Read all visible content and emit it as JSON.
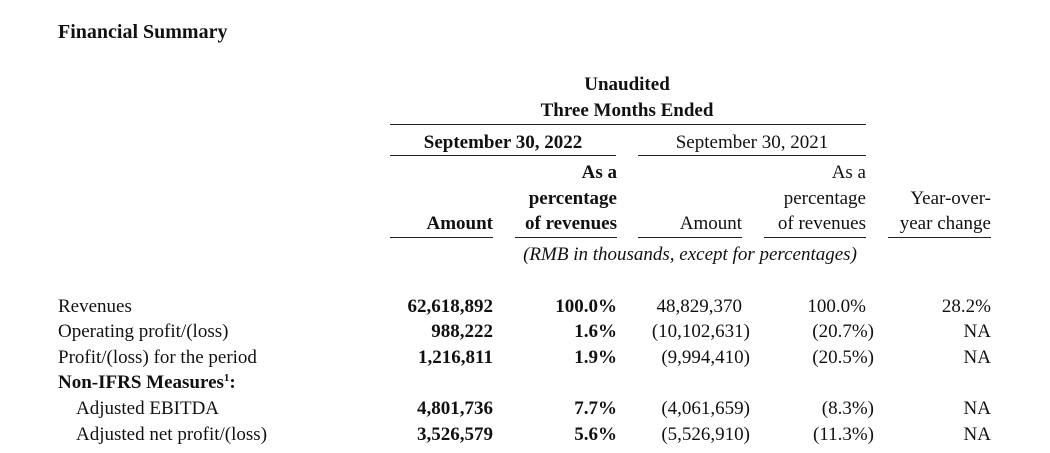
{
  "title": "Financial Summary",
  "header": {
    "line1": "Unaudited",
    "line2": "Three Months Ended",
    "period_current": "September 30, 2022",
    "period_prior": "September 30, 2021",
    "col_amount": "Amount",
    "col_pct_line1": "As a",
    "col_pct_line2": "percentage",
    "col_pct_line3": "of revenues",
    "col_yoy_line1": "Year-over-",
    "col_yoy_line2": "year change",
    "units_note": "(RMB in thousands, except for percentages)"
  },
  "rows": [
    {
      "label": "Revenues",
      "amt_2022": "62,618,892",
      "pct_2022": "100.0%",
      "amt_2021": "48,829,370",
      "pct_2021": "100.0%",
      "yoy": "28.2%"
    },
    {
      "label": "Operating profit/(loss)",
      "amt_2022": "988,222",
      "pct_2022": "1.6%",
      "amt_2021": "(10,102,631)",
      "pct_2021": "(20.7%)",
      "yoy": "NA"
    },
    {
      "label": "Profit/(loss) for the period",
      "amt_2022": "1,216,811",
      "pct_2022": "1.9%",
      "amt_2021": "(9,994,410)",
      "pct_2021": "(20.5%)",
      "yoy": "NA"
    }
  ],
  "non_ifrs": {
    "heading": "Non-IFRS Measures",
    "footnote_mark": "1",
    "heading_suffix": ":",
    "rows": [
      {
        "label": "Adjusted EBITDA",
        "amt_2022": "4,801,736",
        "pct_2022": "7.7%",
        "amt_2021": "(4,061,659)",
        "pct_2021": "(8.3%)",
        "yoy": "NA"
      },
      {
        "label": "Adjusted net profit/(loss)",
        "amt_2022": "3,526,579",
        "pct_2022": "5.6%",
        "amt_2021": "(5,526,910)",
        "pct_2021": "(11.3%)",
        "yoy": "NA"
      }
    ]
  }
}
